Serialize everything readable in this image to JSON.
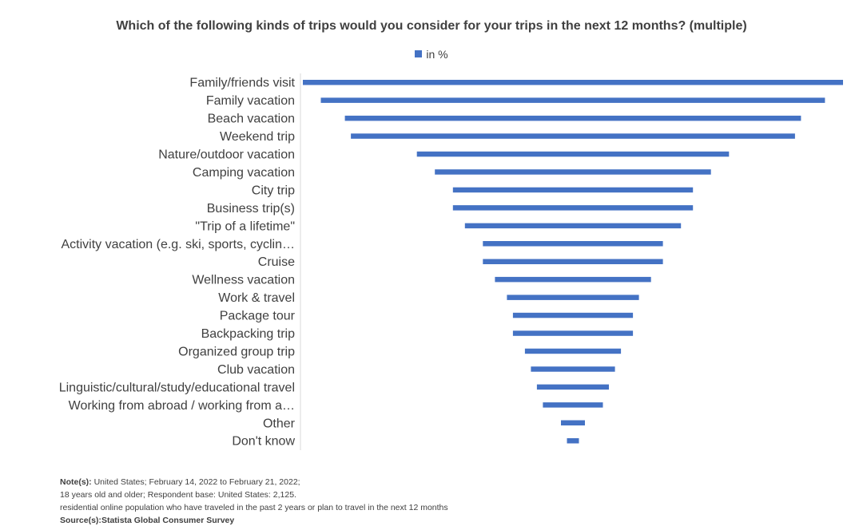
{
  "chart_data": {
    "type": "bar",
    "orientation": "horizontal",
    "layout": "centered-funnel",
    "title": "Which of the following kinds of trips would you consider for your trips in the next 12 months? (multiple)",
    "legend": [
      {
        "name": "in %",
        "color": "#4472c4"
      }
    ],
    "legend_position": "top-center",
    "categories": [
      "Family/friends visit",
      "Family vacation",
      "Beach vacation",
      "Weekend trip",
      "Nature/outdoor vacation",
      "Camping vacation",
      "City trip",
      "Business trip(s)",
      "\"Trip of a lifetime\"",
      "Activity vacation (e.g. ski, sports, cyclin…",
      "Cruise",
      "Wellness vacation",
      "Work & travel",
      "Package tour",
      "Backpacking trip",
      "Organized group trip",
      "Club vacation",
      "Linguistic/cultural/study/educational travel",
      "Working from abroad / working from a…",
      "Other",
      "Don't know"
    ],
    "series": [
      {
        "name": "in %",
        "values": [
          45,
          42,
          38,
          37,
          26,
          23,
          20,
          20,
          18,
          15,
          15,
          13,
          11,
          10,
          10,
          8,
          7,
          6,
          5,
          2,
          1
        ]
      }
    ],
    "value_scale_max": 45,
    "xlabel": "",
    "ylabel": "",
    "grid": false
  },
  "notes": {
    "note_label": "Note(s):",
    "note_line1": "United States; February 14, 2022 to February 21, 2022;",
    "note_line2": "18 years old and older; Respondent base: United States: 2,125.",
    "note_line3": "residential online population who have traveled in the past 2 years or plan to travel in the next 12 months",
    "source_label": "Source(s):",
    "source_text": "Statista Global Consumer Survey"
  }
}
